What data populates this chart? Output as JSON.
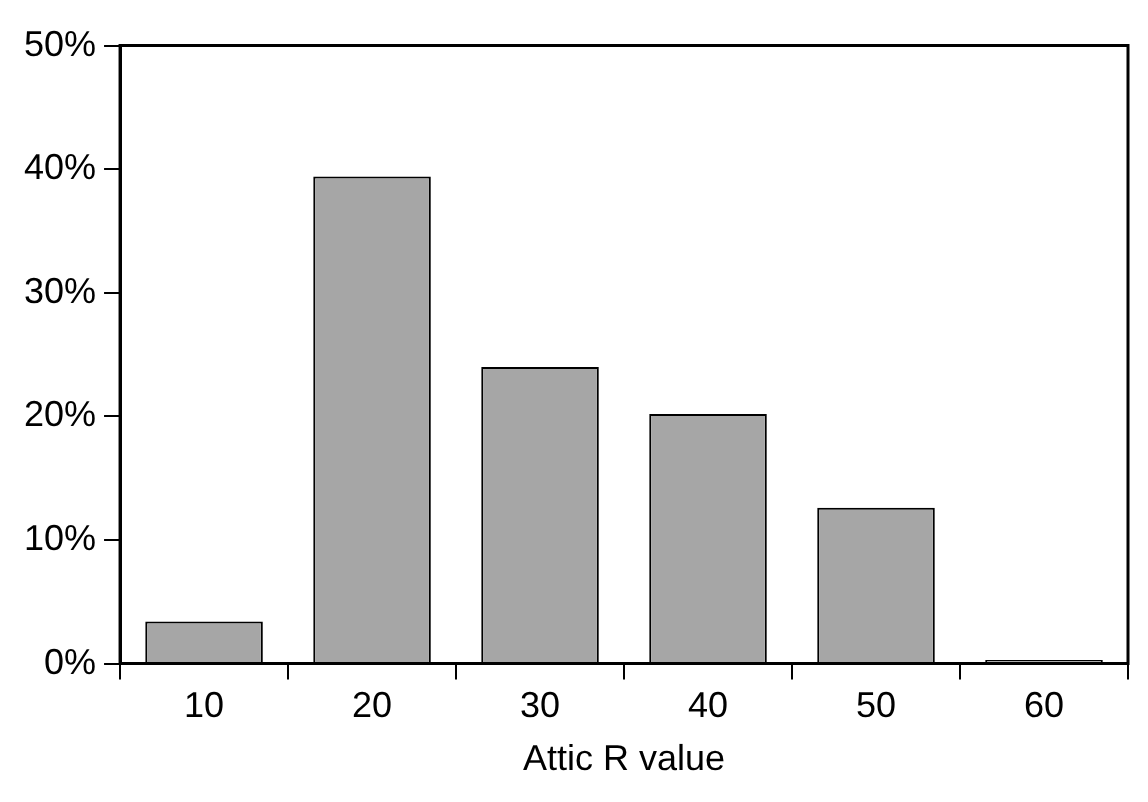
{
  "chart_data": {
    "type": "bar",
    "xlabel": "Attic R value",
    "categories": [
      "10",
      "20",
      "30",
      "40",
      "50",
      "60"
    ],
    "values": [
      3.4,
      39.4,
      24.0,
      20.2,
      12.6,
      0.3
    ],
    "color": "#a6a6a6",
    "ylim": [
      0,
      50
    ],
    "yticks": [
      {
        "value": 0,
        "label": "0%"
      },
      {
        "value": 10,
        "label": "10%"
      },
      {
        "value": 20,
        "label": "20%"
      },
      {
        "value": 30,
        "label": "30%"
      },
      {
        "value": 40,
        "label": "40%"
      },
      {
        "value": 50,
        "label": "50%"
      }
    ],
    "grid": false,
    "legend": false
  }
}
